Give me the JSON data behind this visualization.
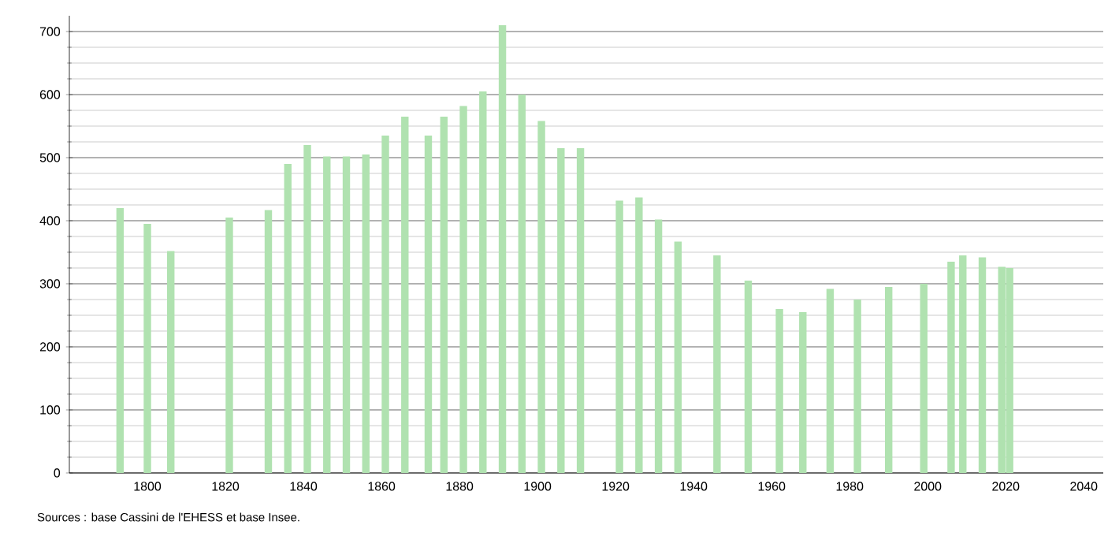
{
  "chart_data": {
    "type": "bar",
    "x": [
      1793,
      1800,
      1806,
      1821,
      1831,
      1836,
      1841,
      1846,
      1851,
      1856,
      1861,
      1866,
      1872,
      1876,
      1881,
      1886,
      1891,
      1896,
      1901,
      1906,
      1911,
      1921,
      1926,
      1931,
      1936,
      1946,
      1954,
      1962,
      1968,
      1975,
      1982,
      1990,
      1999,
      2006,
      2009,
      2014,
      2019,
      2021
    ],
    "values": [
      420,
      395,
      352,
      405,
      417,
      490,
      520,
      502,
      502,
      505,
      535,
      565,
      535,
      565,
      582,
      605,
      710,
      600,
      558,
      515,
      515,
      432,
      437,
      402,
      367,
      345,
      305,
      260,
      255,
      292,
      275,
      295,
      300,
      335,
      345,
      342,
      327,
      325
    ],
    "color": "#b0e2b0",
    "xlim": [
      1780,
      2045
    ],
    "xticks": [
      1800,
      1820,
      1840,
      1860,
      1880,
      1900,
      1920,
      1940,
      1960,
      1980,
      2000,
      2020,
      2040
    ],
    "ylim": [
      0,
      725
    ],
    "yticks": [
      0,
      100,
      200,
      300,
      400,
      500,
      600,
      700
    ],
    "grid": "y",
    "annotations": [
      "Sources : base Cassini de l'EHESS et base Insee."
    ]
  }
}
